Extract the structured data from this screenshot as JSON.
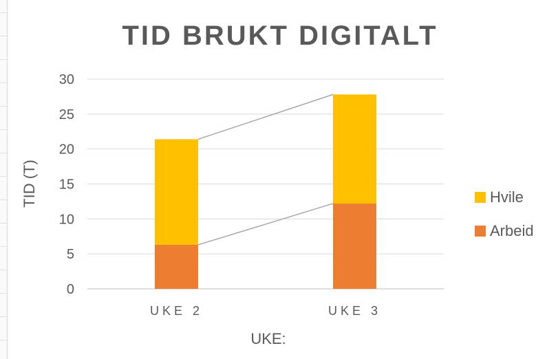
{
  "chart_data": {
    "type": "bar",
    "stacked": true,
    "title": "TID BRUKT DIGITALT",
    "xlabel": "UKE:",
    "ylabel": "TID (T)",
    "categories": [
      "UKE 2",
      "UKE 3"
    ],
    "series": [
      {
        "name": "Arbeid",
        "values": [
          6.3,
          12.2
        ],
        "color": "#ED7D31"
      },
      {
        "name": "Hvile",
        "values": [
          15.1,
          15.6
        ],
        "color": "#FFC000"
      }
    ],
    "ylim": [
      0,
      30
    ],
    "yticks": [
      0,
      5,
      10,
      15,
      20,
      25,
      30
    ],
    "grid": true,
    "series_lines": true,
    "legend_position": "right"
  }
}
